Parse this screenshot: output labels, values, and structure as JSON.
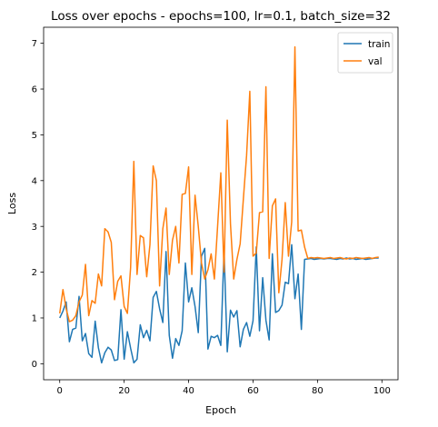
{
  "chart_data": {
    "type": "line",
    "title": "Loss over epochs - epochs=100, lr=0.1, batch_size=32",
    "xlabel": "Epoch",
    "ylabel": "Loss",
    "xlim": [
      -5,
      105
    ],
    "ylim": [
      -0.35,
      7.35
    ],
    "xticks": [
      0,
      20,
      40,
      60,
      80,
      100
    ],
    "yticks": [
      0,
      1,
      2,
      3,
      4,
      5,
      6,
      7
    ],
    "grid": false,
    "legend": {
      "position": "top-right"
    },
    "series": [
      {
        "name": "train",
        "color": "#1f77b4",
        "x": [
          0,
          1,
          2,
          3,
          4,
          5,
          6,
          7,
          8,
          9,
          10,
          11,
          12,
          13,
          14,
          15,
          16,
          17,
          18,
          19,
          20,
          21,
          22,
          23,
          24,
          25,
          26,
          27,
          28,
          29,
          30,
          31,
          32,
          33,
          34,
          35,
          36,
          37,
          38,
          39,
          40,
          41,
          42,
          43,
          44,
          45,
          46,
          47,
          48,
          49,
          50,
          51,
          52,
          53,
          54,
          55,
          56,
          57,
          58,
          59,
          60,
          61,
          62,
          63,
          64,
          65,
          66,
          67,
          68,
          69,
          70,
          71,
          72,
          73,
          74,
          75,
          76,
          77,
          78,
          79,
          80,
          81,
          82,
          83,
          84,
          85,
          86,
          87,
          88,
          89,
          90,
          91,
          92,
          93,
          94,
          95,
          96,
          97,
          98,
          99
        ],
        "values": [
          1.0,
          1.15,
          1.35,
          0.48,
          0.75,
          0.78,
          1.47,
          0.5,
          0.66,
          0.22,
          0.14,
          0.93,
          0.35,
          0.02,
          0.24,
          0.36,
          0.3,
          0.07,
          0.09,
          1.18,
          0.1,
          0.7,
          0.34,
          0.02,
          0.1,
          0.85,
          0.57,
          0.73,
          0.5,
          1.45,
          1.58,
          1.2,
          0.9,
          2.45,
          0.62,
          0.12,
          0.55,
          0.4,
          0.72,
          2.2,
          1.35,
          1.66,
          1.25,
          0.68,
          2.35,
          2.52,
          0.32,
          0.6,
          0.57,
          0.62,
          0.4,
          2.48,
          0.26,
          1.17,
          1.02,
          1.16,
          0.37,
          0.75,
          0.9,
          0.6,
          0.94,
          2.55,
          0.72,
          1.88,
          0.95,
          0.52,
          2.4,
          1.12,
          1.16,
          1.28,
          1.78,
          1.75,
          2.6,
          1.42,
          1.96,
          0.75,
          2.28,
          2.29,
          2.3,
          2.28,
          2.29,
          2.3,
          2.29,
          2.3,
          2.3,
          2.29,
          2.28,
          2.3,
          2.29,
          2.31,
          2.29,
          2.3,
          2.28,
          2.29,
          2.3,
          2.28,
          2.29,
          2.3,
          2.31,
          2.31
        ]
      },
      {
        "name": "val",
        "color": "#ff7f0e",
        "x": [
          0,
          1,
          2,
          3,
          4,
          5,
          6,
          7,
          8,
          9,
          10,
          11,
          12,
          13,
          14,
          15,
          16,
          17,
          18,
          19,
          20,
          21,
          22,
          23,
          24,
          25,
          26,
          27,
          28,
          29,
          30,
          31,
          32,
          33,
          34,
          35,
          36,
          37,
          38,
          39,
          40,
          41,
          42,
          43,
          44,
          45,
          46,
          47,
          48,
          49,
          50,
          51,
          52,
          53,
          54,
          55,
          56,
          57,
          58,
          59,
          60,
          61,
          62,
          63,
          64,
          65,
          66,
          67,
          68,
          69,
          70,
          71,
          72,
          73,
          74,
          75,
          76,
          77,
          78,
          79,
          80,
          81,
          82,
          83,
          84,
          85,
          86,
          87,
          88,
          89,
          90,
          91,
          92,
          93,
          94,
          95,
          96,
          97,
          98,
          99
        ],
        "values": [
          1.1,
          1.62,
          1.2,
          0.92,
          0.95,
          1.05,
          1.35,
          1.5,
          2.17,
          1.05,
          1.38,
          1.32,
          1.96,
          1.7,
          2.95,
          2.88,
          2.65,
          1.4,
          1.8,
          1.92,
          1.25,
          1.1,
          2.1,
          4.42,
          1.95,
          2.8,
          2.75,
          1.9,
          2.6,
          4.32,
          4.0,
          1.7,
          2.95,
          3.4,
          1.95,
          2.7,
          3.0,
          2.2,
          3.7,
          3.72,
          4.3,
          1.95,
          3.68,
          3.0,
          2.2,
          1.85,
          2.05,
          2.4,
          1.85,
          3.0,
          4.17,
          2.0,
          5.32,
          3.05,
          1.85,
          2.28,
          2.62,
          3.6,
          4.55,
          5.95,
          2.35,
          2.42,
          3.3,
          3.32,
          6.05,
          2.3,
          3.45,
          3.6,
          1.55,
          2.28,
          3.52,
          2.35,
          3.1,
          6.92,
          2.9,
          2.92,
          2.55,
          2.3,
          2.32,
          2.31,
          2.32,
          2.31,
          2.3,
          2.31,
          2.32,
          2.3,
          2.31,
          2.32,
          2.3,
          2.29,
          2.31,
          2.3,
          2.32,
          2.31,
          2.3,
          2.31,
          2.32,
          2.3,
          2.32,
          2.33
        ]
      }
    ]
  }
}
